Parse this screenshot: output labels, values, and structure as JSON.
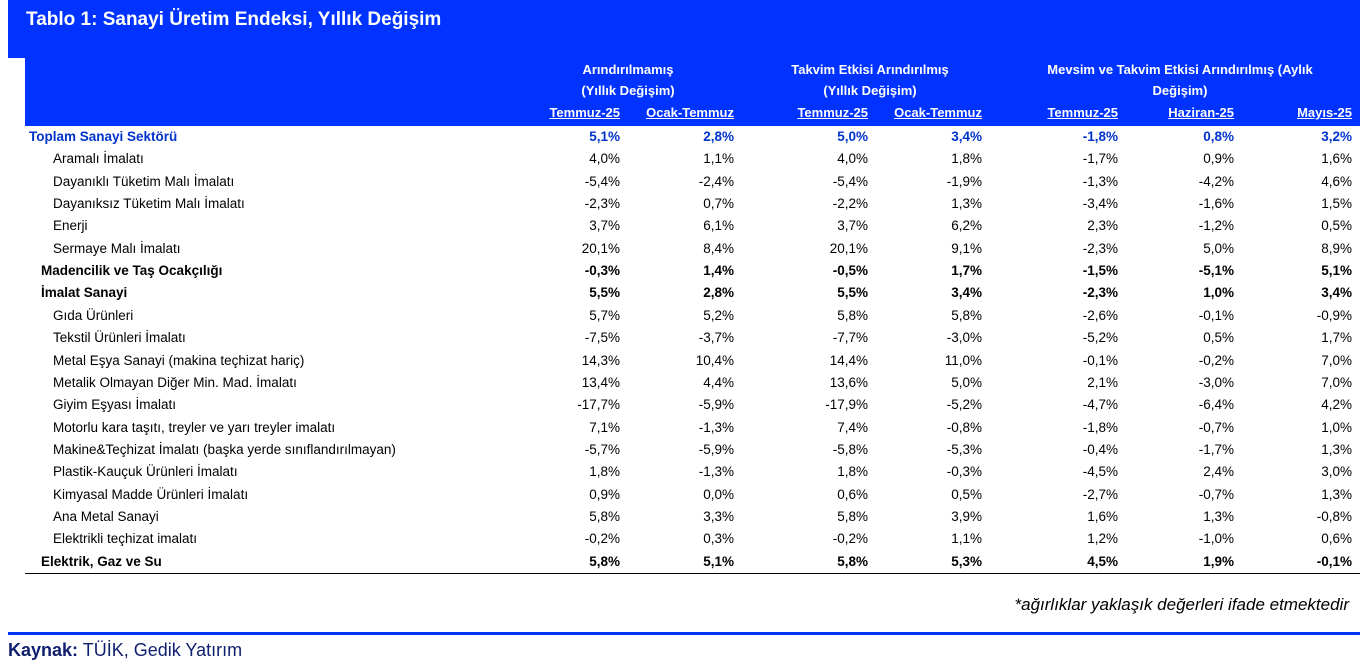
{
  "title": "Tablo 1: Sanayi Üretim Endeksi, Yıllık Değişim",
  "groups": [
    {
      "line1": "Arındırılmamış",
      "line2": "(Yıllık Değişim)"
    },
    {
      "line1": "Takvim Etkisi Arındırılmış",
      "line2": "(Yıllık Değişim)"
    },
    {
      "line1": "Mevsim ve Takvim Etkisi Arındırılmış (Aylık",
      "line2": "Değişim)"
    }
  ],
  "columns": [
    "Temmuz-25",
    "Ocak-Temmuz",
    "Temmuz-25",
    "Ocak-Temmuz",
    "Temmuz-25",
    "Haziran-25",
    "Mayıs-25"
  ],
  "rows": [
    {
      "label": "Toplam Sanayi Sektörü",
      "values": [
        "5,1%",
        "2,8%",
        "5,0%",
        "3,4%",
        "-1,8%",
        "0,8%",
        "3,2%"
      ]
    },
    {
      "label": "Aramalı İmalatı",
      "values": [
        "4,0%",
        "1,1%",
        "4,0%",
        "1,8%",
        "-1,7%",
        "0,9%",
        "1,6%"
      ]
    },
    {
      "label": "Dayanıklı Tüketim Malı İmalatı",
      "values": [
        "-5,4%",
        "-2,4%",
        "-5,4%",
        "-1,9%",
        "-1,3%",
        "-4,2%",
        "4,6%"
      ]
    },
    {
      "label": "Dayanıksız Tüketim Malı İmalatı",
      "values": [
        "-2,3%",
        "0,7%",
        "-2,2%",
        "1,3%",
        "-3,4%",
        "-1,6%",
        "1,5%"
      ]
    },
    {
      "label": "Enerji",
      "values": [
        "3,7%",
        "6,1%",
        "3,7%",
        "6,2%",
        "2,3%",
        "-1,2%",
        "0,5%"
      ]
    },
    {
      "label": "Sermaye Malı İmalatı",
      "values": [
        "20,1%",
        "8,4%",
        "20,1%",
        "9,1%",
        "-2,3%",
        "5,0%",
        "8,9%"
      ]
    },
    {
      "label": "Madencilik ve Taş Ocakçılığı",
      "values": [
        "-0,3%",
        "1,4%",
        "-0,5%",
        "1,7%",
        "-1,5%",
        "-5,1%",
        "5,1%"
      ]
    },
    {
      "label": "İmalat Sanayi",
      "values": [
        "5,5%",
        "2,8%",
        "5,5%",
        "3,4%",
        "-2,3%",
        "1,0%",
        "3,4%"
      ]
    },
    {
      "label": "Gıda Ürünleri",
      "values": [
        "5,7%",
        "5,2%",
        "5,8%",
        "5,8%",
        "-2,6%",
        "-0,1%",
        "-0,9%"
      ]
    },
    {
      "label": "Tekstil Ürünleri İmalatı",
      "values": [
        "-7,5%",
        "-3,7%",
        "-7,7%",
        "-3,0%",
        "-5,2%",
        "0,5%",
        "1,7%"
      ]
    },
    {
      "label": "Metal Eşya Sanayi (makina teçhizat hariç)",
      "values": [
        "14,3%",
        "10,4%",
        "14,4%",
        "11,0%",
        "-0,1%",
        "-0,2%",
        "7,0%"
      ]
    },
    {
      "label": "Metalik Olmayan Diğer Min. Mad. İmalatı",
      "values": [
        "13,4%",
        "4,4%",
        "13,6%",
        "5,0%",
        "2,1%",
        "-3,0%",
        "7,0%"
      ]
    },
    {
      "label": "Giyim Eşyası İmalatı",
      "values": [
        "-17,7%",
        "-5,9%",
        "-17,9%",
        "-5,2%",
        "-4,7%",
        "-6,4%",
        "4,2%"
      ]
    },
    {
      "label": "Motorlu kara taşıtı, treyler ve yarı treyler imalatı",
      "values": [
        "7,1%",
        "-1,3%",
        "7,4%",
        "-0,8%",
        "-1,8%",
        "-0,7%",
        "1,0%"
      ]
    },
    {
      "label": "Makine&Teçhizat İmalatı (başka yerde sınıflandırılmayan)",
      "values": [
        "-5,7%",
        "-5,9%",
        "-5,8%",
        "-5,3%",
        "-0,4%",
        "-1,7%",
        "1,3%"
      ]
    },
    {
      "label": "Plastik-Kauçuk Ürünleri İmalatı",
      "values": [
        "1,8%",
        "-1,3%",
        "1,8%",
        "-0,3%",
        "-4,5%",
        "2,4%",
        "3,0%"
      ]
    },
    {
      "label": "Kimyasal Madde Ürünleri İmalatı",
      "values": [
        "0,9%",
        "0,0%",
        "0,6%",
        "0,5%",
        "-2,7%",
        "-0,7%",
        "1,3%"
      ]
    },
    {
      "label": "Ana Metal Sanayi",
      "values": [
        "5,8%",
        "3,3%",
        "5,8%",
        "3,9%",
        "1,6%",
        "1,3%",
        "-0,8%"
      ]
    },
    {
      "label": "Elektrikli teçhizat imalatı",
      "values": [
        "-0,2%",
        "0,3%",
        "-0,2%",
        "1,1%",
        "1,2%",
        "-1,0%",
        "0,6%"
      ]
    },
    {
      "label": "Elektrik, Gaz ve Su",
      "values": [
        "5,8%",
        "5,1%",
        "5,8%",
        "5,3%",
        "4,5%",
        "1,9%",
        "-0,1%"
      ]
    }
  ],
  "note": "*ağırlıklar yaklaşık değerleri ifade etmektedir",
  "source": {
    "label": "Kaynak:",
    "text": "TÜİK, Gedik Yatırım"
  },
  "colors": {
    "header_bg": "#0033ff",
    "total_text": "#0033cc"
  }
}
